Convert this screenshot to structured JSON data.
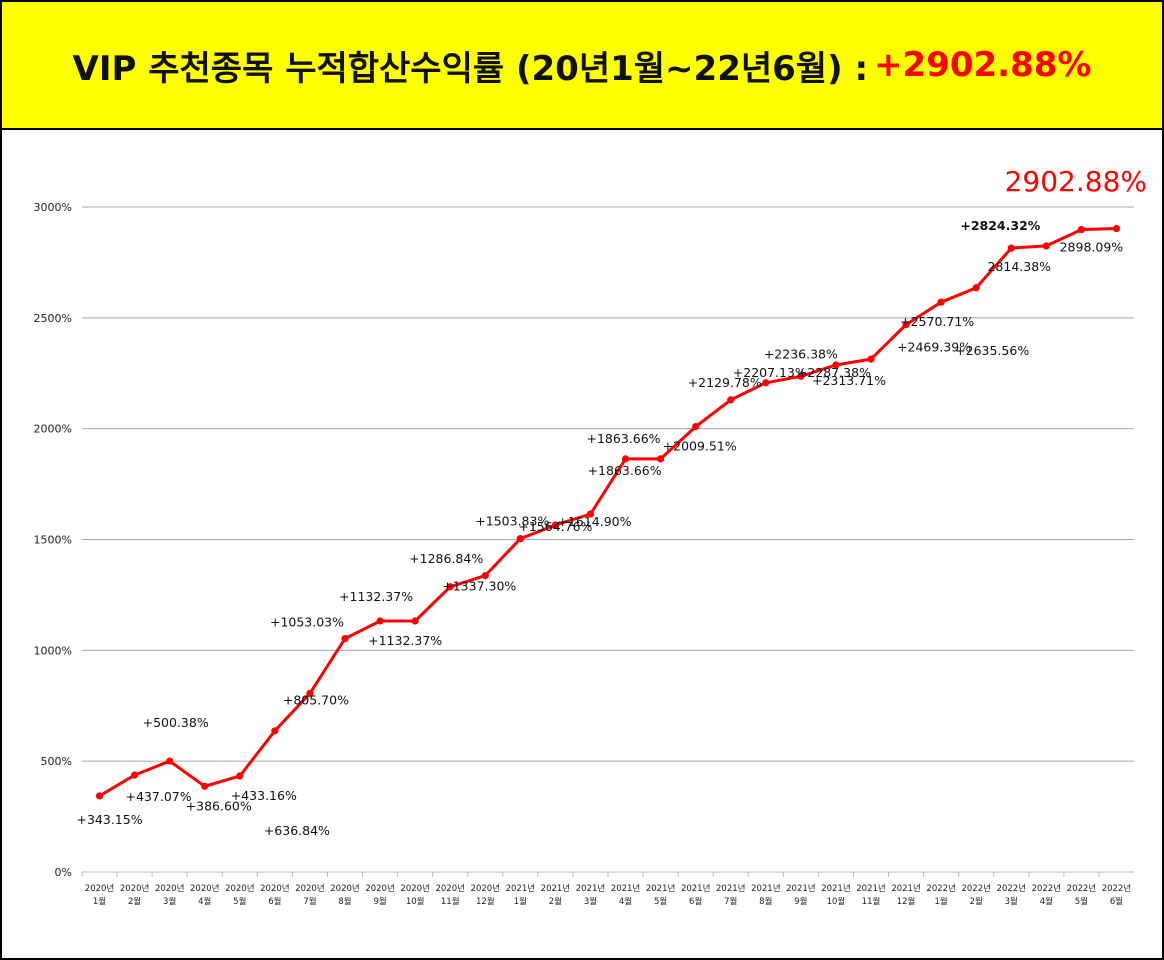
{
  "banner": {
    "title": "VIP 추천종목 누적합산수익률 (20년1월~22년6월) :",
    "highlight": "+2902.88%",
    "background": "#ffff00",
    "highlight_color": "#ff0000"
  },
  "chart_data": {
    "type": "line",
    "title": "",
    "xlabel": "",
    "ylabel": "",
    "ylim": [
      0,
      3000
    ],
    "yticks": [
      "0%",
      "500%",
      "1000%",
      "1500%",
      "2000%",
      "2500%",
      "3000%"
    ],
    "grid": true,
    "legend": "none",
    "line_color": "#ff0000",
    "final_label": "2902.88%",
    "categories": [
      [
        "2020년",
        "1월"
      ],
      [
        "2020년",
        "2월"
      ],
      [
        "2020년",
        "3월"
      ],
      [
        "2020년",
        "4월"
      ],
      [
        "2020년",
        "5월"
      ],
      [
        "2020년",
        "6월"
      ],
      [
        "2020년",
        "7월"
      ],
      [
        "2020년",
        "8월"
      ],
      [
        "2020년",
        "9월"
      ],
      [
        "2020년",
        "10월"
      ],
      [
        "2020년",
        "11월"
      ],
      [
        "2020년",
        "12월"
      ],
      [
        "2021년",
        "1월"
      ],
      [
        "2021년",
        "2월"
      ],
      [
        "2021년",
        "3월"
      ],
      [
        "2021년",
        "4월"
      ],
      [
        "2021년",
        "5월"
      ],
      [
        "2021년",
        "6월"
      ],
      [
        "2021년",
        "7월"
      ],
      [
        "2021년",
        "8월"
      ],
      [
        "2021년",
        "9월"
      ],
      [
        "2021년",
        "10월"
      ],
      [
        "2021년",
        "11월"
      ],
      [
        "2021년",
        "12월"
      ],
      [
        "2022년",
        "1월"
      ],
      [
        "2022년",
        "2월"
      ],
      [
        "2022년",
        "3월"
      ],
      [
        "2022년",
        "4월"
      ],
      [
        "2022년",
        "5월"
      ],
      [
        "2022년",
        "6월"
      ]
    ],
    "values": [
      343.15,
      437.07,
      500.38,
      386.6,
      433.16,
      636.84,
      805.7,
      1053.03,
      1132.37,
      1132.37,
      1286.84,
      1337.3,
      1503.83,
      1564.76,
      1614.9,
      1863.66,
      1863.66,
      2009.51,
      2129.78,
      2207.13,
      2236.38,
      2287.38,
      2313.71,
      2469.39,
      2570.71,
      2635.56,
      2814.38,
      2824.32,
      2898.09,
      2902.88
    ],
    "data_labels": [
      "+343.15%",
      "+437.07%",
      "+500.38%",
      "+386.60%",
      "+433.16%",
      "+636.84%",
      "+805.70%",
      "+1053.03%",
      "+1132.37%",
      "+1132.37%",
      "+1286.84%",
      "+1337.30%",
      "+1503.83%",
      "+1564.76%",
      "+1614.90%",
      "+1863.66%",
      "+1863.66%",
      "+2009.51%",
      "+2129.78%",
      "+2207.13%",
      "+2236.38%",
      "+2287.38%",
      "+2313.71%",
      "+2469.39%",
      "+2570.71%",
      "+2635.56%",
      "2814.38%",
      "+2824.32%",
      "2898.09%",
      ""
    ]
  }
}
